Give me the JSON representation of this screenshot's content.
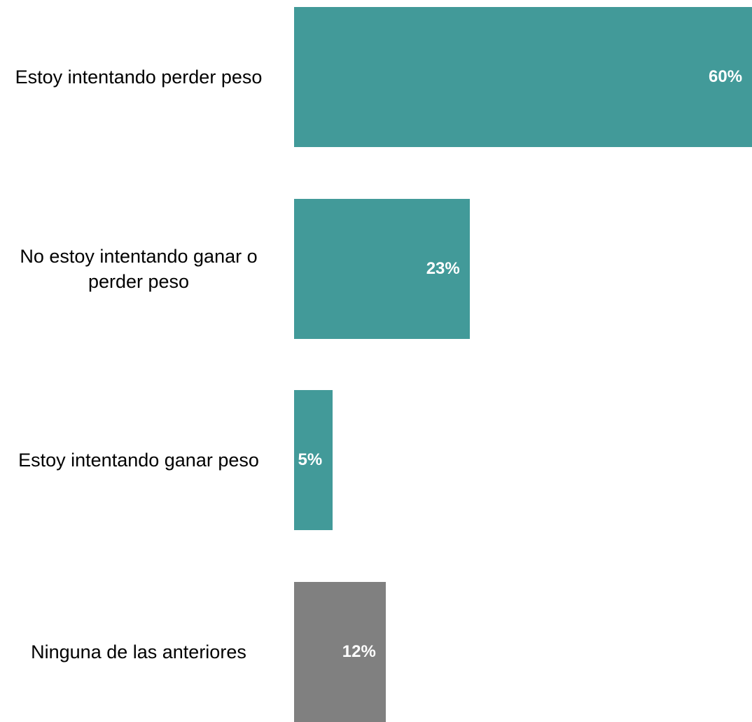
{
  "chart_data": {
    "type": "bar",
    "orientation": "horizontal",
    "categories": [
      "Estoy intentando perder peso",
      "No estoy intentando ganar o perder peso",
      "Estoy intentando ganar peso",
      "Ninguna de las anteriores"
    ],
    "values": [
      60,
      23,
      5,
      12
    ],
    "value_labels": [
      "60%",
      "23%",
      "5%",
      "12%"
    ],
    "unit": "%",
    "xlim": [
      0,
      60
    ],
    "grid": false,
    "legend": "none",
    "colors": [
      "#429a99",
      "#429a99",
      "#429a99",
      "#808080"
    ]
  }
}
